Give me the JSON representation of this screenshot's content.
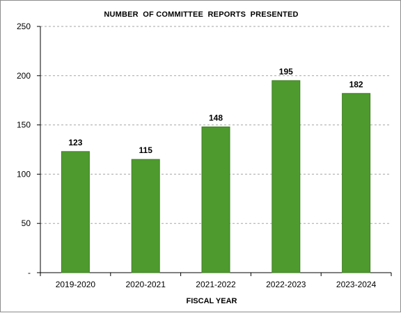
{
  "chart_data": {
    "type": "bar",
    "title": "NUMBER  OF COMMITTEE  REPORTS  PRESENTED",
    "xlabel": "FISCAL YEAR",
    "ylabel": "",
    "categories": [
      "2019-2020",
      "2020-2021",
      "2021-2022",
      "2022-2023",
      "2023-2024"
    ],
    "values": [
      123,
      115,
      148,
      195,
      182
    ],
    "data_labels": [
      "123",
      "115",
      "148",
      "195",
      "182"
    ],
    "ylim": [
      0,
      250
    ],
    "y_ticks": [
      0,
      50,
      100,
      150,
      200,
      250
    ],
    "y_tick_labels": [
      "-",
      "50",
      "100",
      "150",
      "200",
      "250"
    ],
    "grid": "horizontal dashed",
    "legend": "none",
    "bar_color": "#4e9a2e",
    "bar_edge_color": "#3f7f24"
  }
}
